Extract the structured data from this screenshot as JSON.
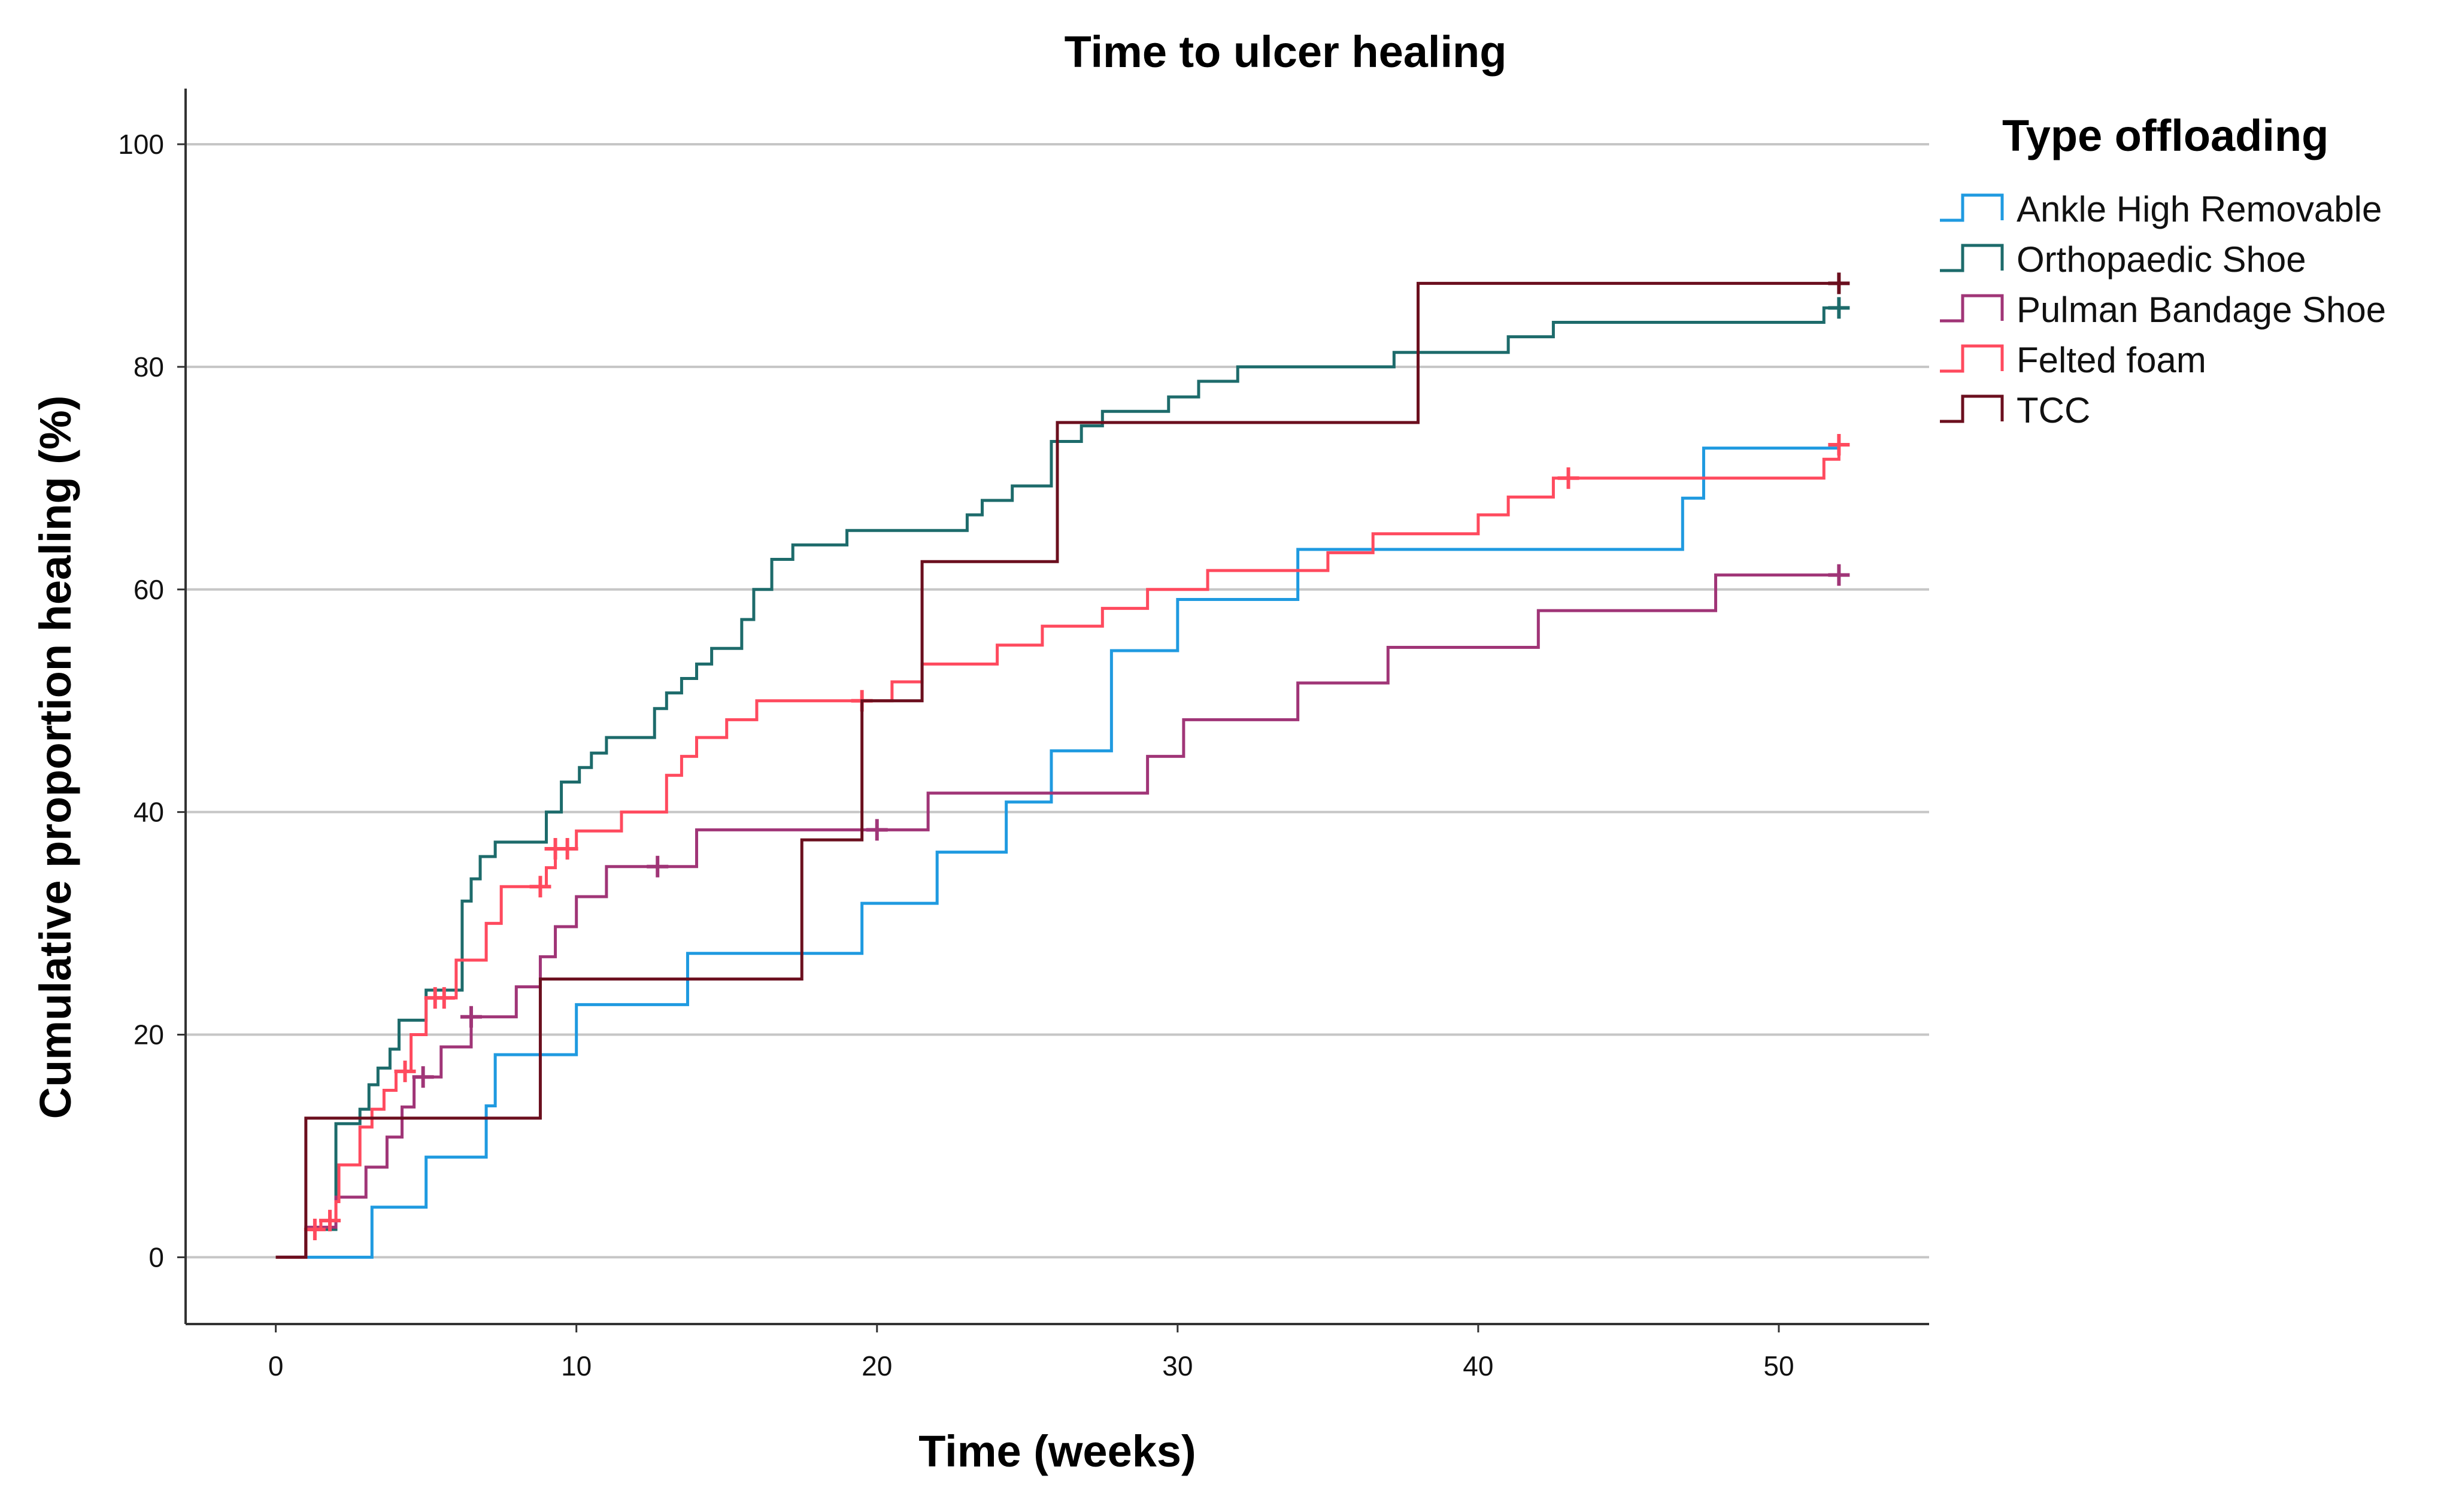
{
  "chart_data": {
    "type": "line",
    "title": "Time to ulcer healing",
    "xlabel": "Time (weeks)",
    "ylabel": "Cumulative proportion healing (%)",
    "xlim": [
      -3,
      55
    ],
    "ylim": [
      -6,
      105
    ],
    "xticks": [
      0,
      10,
      20,
      30,
      40,
      50
    ],
    "yticks": [
      0,
      20,
      40,
      60,
      80,
      100
    ],
    "grid": "horizontal",
    "legend": {
      "title": "Type offloading",
      "placement": "right"
    },
    "series": [
      {
        "name": "Ankle High Removable",
        "color": "#1f9ae0",
        "steps": [
          [
            0,
            0
          ],
          [
            3.2,
            4.5
          ],
          [
            5,
            9
          ],
          [
            7,
            13.6
          ],
          [
            7.3,
            18.2
          ],
          [
            10,
            22.7
          ],
          [
            13.7,
            27.3
          ],
          [
            19.5,
            31.8
          ],
          [
            22,
            36.4
          ],
          [
            24.3,
            40.9
          ],
          [
            25.8,
            45.5
          ],
          [
            27.8,
            54.5
          ],
          [
            30,
            59.1
          ],
          [
            34,
            63.6
          ],
          [
            46.8,
            68.2
          ],
          [
            47.5,
            72.7
          ],
          [
            52,
            72.7
          ]
        ],
        "censored": []
      },
      {
        "name": "Orthopaedic Shoe",
        "color": "#1d6b6b",
        "steps": [
          [
            0,
            0
          ],
          [
            1,
            2.5
          ],
          [
            2,
            12
          ],
          [
            2.8,
            13.3
          ],
          [
            3.1,
            15.5
          ],
          [
            3.4,
            17
          ],
          [
            3.8,
            18.7
          ],
          [
            4.1,
            21.3
          ],
          [
            5,
            24
          ],
          [
            6.2,
            32
          ],
          [
            6.5,
            34
          ],
          [
            6.8,
            36
          ],
          [
            7.3,
            37.3
          ],
          [
            9,
            40
          ],
          [
            9.5,
            42.7
          ],
          [
            10.1,
            44
          ],
          [
            10.5,
            45.3
          ],
          [
            11,
            46.7
          ],
          [
            12.6,
            49.3
          ],
          [
            13,
            50.7
          ],
          [
            13.5,
            52
          ],
          [
            14,
            53.3
          ],
          [
            14.5,
            54.7
          ],
          [
            15.5,
            57.3
          ],
          [
            15.9,
            60
          ],
          [
            16.5,
            62.7
          ],
          [
            17.2,
            64
          ],
          [
            19,
            65.3
          ],
          [
            23,
            66.7
          ],
          [
            23.5,
            68
          ],
          [
            24.5,
            69.3
          ],
          [
            25.8,
            73.3
          ],
          [
            26.8,
            74.7
          ],
          [
            27.5,
            76
          ],
          [
            29.7,
            77.3
          ],
          [
            30.7,
            78.7
          ],
          [
            32,
            80
          ],
          [
            37.2,
            81.3
          ],
          [
            41,
            82.7
          ],
          [
            42.5,
            84
          ],
          [
            51.5,
            85.3
          ],
          [
            52,
            85.3
          ]
        ],
        "censored": [
          52
        ]
      },
      {
        "name": "Pulman Bandage Shoe",
        "color": "#a03577",
        "steps": [
          [
            0,
            0
          ],
          [
            1,
            2.7
          ],
          [
            2,
            5.4
          ],
          [
            3,
            8.1
          ],
          [
            3.7,
            10.8
          ],
          [
            4.2,
            13.5
          ],
          [
            4.6,
            16.2
          ],
          [
            5.5,
            18.9
          ],
          [
            6.5,
            21.6
          ],
          [
            8,
            24.3
          ],
          [
            8.8,
            27
          ],
          [
            9.3,
            29.7
          ],
          [
            10,
            32.4
          ],
          [
            11,
            35.1
          ],
          [
            14,
            38.4
          ],
          [
            21.7,
            41.7
          ],
          [
            29,
            45
          ],
          [
            30.2,
            48.3
          ],
          [
            34,
            51.6
          ],
          [
            37,
            54.8
          ],
          [
            42,
            58.1
          ],
          [
            47.9,
            61.3
          ],
          [
            52,
            61.3
          ]
        ],
        "censored": [
          4.9,
          6.5,
          12.7,
          20,
          52
        ]
      },
      {
        "name": "Felted foam",
        "color": "#ff4a5e",
        "steps": [
          [
            0,
            0
          ],
          [
            1,
            2.5
          ],
          [
            1.5,
            3.3
          ],
          [
            2,
            5
          ],
          [
            2.1,
            8.3
          ],
          [
            2.8,
            11.7
          ],
          [
            3.2,
            13.3
          ],
          [
            3.6,
            15
          ],
          [
            4,
            16.7
          ],
          [
            4.5,
            20
          ],
          [
            5,
            23.3
          ],
          [
            6,
            26.7
          ],
          [
            7,
            30
          ],
          [
            7.5,
            33.3
          ],
          [
            9,
            35
          ],
          [
            9.3,
            36.7
          ],
          [
            10,
            38.3
          ],
          [
            11.5,
            40
          ],
          [
            13,
            43.3
          ],
          [
            13.5,
            45
          ],
          [
            14,
            46.7
          ],
          [
            15,
            48.3
          ],
          [
            16,
            50
          ],
          [
            20.5,
            51.7
          ],
          [
            21.5,
            53.3
          ],
          [
            24,
            55
          ],
          [
            25.5,
            56.7
          ],
          [
            27.5,
            58.3
          ],
          [
            29,
            60
          ],
          [
            31,
            61.7
          ],
          [
            35,
            63.3
          ],
          [
            36.5,
            65
          ],
          [
            40,
            66.7
          ],
          [
            41,
            68.3
          ],
          [
            42.5,
            70
          ],
          [
            51.5,
            71.7
          ],
          [
            52,
            73
          ]
        ],
        "censored": [
          1.3,
          1.8,
          4.3,
          5.3,
          5.6,
          8.8,
          9.3,
          9.7,
          19.5,
          43,
          52
        ]
      },
      {
        "name": "TCC",
        "color": "#6b0f1e",
        "steps": [
          [
            0,
            0
          ],
          [
            1,
            12.5
          ],
          [
            8.8,
            25
          ],
          [
            17.5,
            37.5
          ],
          [
            19.5,
            50
          ],
          [
            21.5,
            62.5
          ],
          [
            26,
            75
          ],
          [
            38,
            87.5
          ],
          [
            52,
            87.5
          ]
        ],
        "censored": [
          52
        ]
      }
    ]
  }
}
